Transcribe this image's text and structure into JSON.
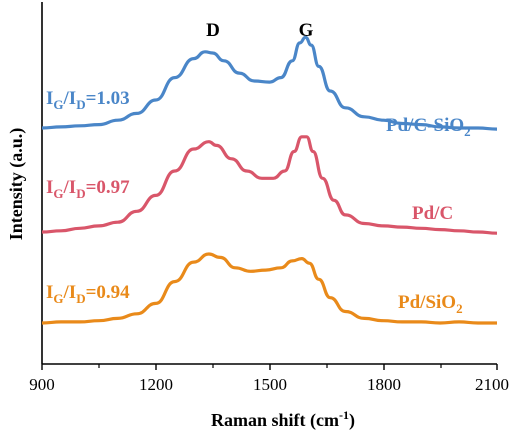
{
  "chart_data": {
    "type": "line",
    "xlabel_main": "Raman shift (cm",
    "xlabel_sup": "-1",
    "xlabel_end": ")",
    "ylabel": "Intensity (a.u.)",
    "xlim": [
      900,
      2100
    ],
    "xticks": [
      "900",
      "1200",
      "1500",
      "1800",
      "2100"
    ],
    "yticks_shown": false,
    "peak_labels": [
      {
        "text": "D",
        "x": 1345
      },
      {
        "text": "G",
        "x": 1590
      }
    ],
    "series": [
      {
        "name": "Pd/C-SiO2",
        "label_main": "Pd/C-SiO",
        "label_sub": "2",
        "ratio_prefix": "I",
        "ratio_sub1": "G",
        "ratio_slash": "/I",
        "ratio_sub2": "D",
        "ratio_value": "=1.03",
        "color": "#4a86c8",
        "points": [
          [
            900,
            0.0
          ],
          [
            950,
            0.01
          ],
          [
            1000,
            0.02
          ],
          [
            1050,
            0.03
          ],
          [
            1100,
            0.07
          ],
          [
            1150,
            0.13
          ],
          [
            1200,
            0.25
          ],
          [
            1250,
            0.45
          ],
          [
            1300,
            0.62
          ],
          [
            1330,
            0.68
          ],
          [
            1350,
            0.67
          ],
          [
            1380,
            0.6
          ],
          [
            1420,
            0.49
          ],
          [
            1460,
            0.42
          ],
          [
            1500,
            0.41
          ],
          [
            1530,
            0.45
          ],
          [
            1560,
            0.6
          ],
          [
            1580,
            0.76
          ],
          [
            1595,
            0.81
          ],
          [
            1610,
            0.74
          ],
          [
            1630,
            0.55
          ],
          [
            1660,
            0.33
          ],
          [
            1700,
            0.18
          ],
          [
            1750,
            0.1
          ],
          [
            1800,
            0.07
          ],
          [
            1850,
            0.04
          ],
          [
            1900,
            0.03
          ],
          [
            1950,
            0.01
          ],
          [
            2000,
            0.0
          ],
          [
            2050,
            0.0
          ],
          [
            2100,
            -0.01
          ]
        ]
      },
      {
        "name": "Pd/C",
        "label_main": "Pd/C",
        "label_sub": "",
        "ratio_prefix": "I",
        "ratio_sub1": "G",
        "ratio_slash": "/I",
        "ratio_sub2": "D",
        "ratio_value": "=0.97",
        "color": "#d9566a",
        "points": [
          [
            900,
            0.0
          ],
          [
            950,
            0.01
          ],
          [
            1000,
            0.03
          ],
          [
            1050,
            0.05
          ],
          [
            1100,
            0.08
          ],
          [
            1150,
            0.17
          ],
          [
            1200,
            0.3
          ],
          [
            1250,
            0.5
          ],
          [
            1300,
            0.68
          ],
          [
            1340,
            0.74
          ],
          [
            1360,
            0.71
          ],
          [
            1400,
            0.6
          ],
          [
            1440,
            0.5
          ],
          [
            1480,
            0.44
          ],
          [
            1510,
            0.44
          ],
          [
            1540,
            0.5
          ],
          [
            1565,
            0.66
          ],
          [
            1585,
            0.78
          ],
          [
            1598,
            0.78
          ],
          [
            1615,
            0.66
          ],
          [
            1640,
            0.44
          ],
          [
            1670,
            0.26
          ],
          [
            1700,
            0.14
          ],
          [
            1750,
            0.07
          ],
          [
            1800,
            0.05
          ],
          [
            1850,
            0.04
          ],
          [
            1900,
            0.03
          ],
          [
            1950,
            0.02
          ],
          [
            2000,
            0.01
          ],
          [
            2050,
            0.0
          ],
          [
            2100,
            -0.01
          ]
        ]
      },
      {
        "name": "Pd/SiO2",
        "label_main": "Pd/SiO",
        "label_sub": "2",
        "ratio_prefix": "I",
        "ratio_sub1": "G",
        "ratio_slash": "/I",
        "ratio_sub2": "D",
        "ratio_value": "=0.94",
        "color": "#e98a1a",
        "points": [
          [
            900,
            0.0
          ],
          [
            950,
            0.01
          ],
          [
            1000,
            0.01
          ],
          [
            1050,
            0.02
          ],
          [
            1100,
            0.04
          ],
          [
            1150,
            0.08
          ],
          [
            1200,
            0.17
          ],
          [
            1250,
            0.36
          ],
          [
            1300,
            0.53
          ],
          [
            1340,
            0.6
          ],
          [
            1370,
            0.57
          ],
          [
            1410,
            0.48
          ],
          [
            1450,
            0.45
          ],
          [
            1490,
            0.46
          ],
          [
            1530,
            0.48
          ],
          [
            1560,
            0.54
          ],
          [
            1585,
            0.56
          ],
          [
            1605,
            0.52
          ],
          [
            1630,
            0.38
          ],
          [
            1660,
            0.22
          ],
          [
            1700,
            0.1
          ],
          [
            1750,
            0.04
          ],
          [
            1800,
            0.02
          ],
          [
            1850,
            0.01
          ],
          [
            1900,
            0.01
          ],
          [
            1950,
            0.0
          ],
          [
            2000,
            0.01
          ],
          [
            2050,
            0.0
          ],
          [
            2100,
            0.0
          ]
        ]
      }
    ]
  }
}
